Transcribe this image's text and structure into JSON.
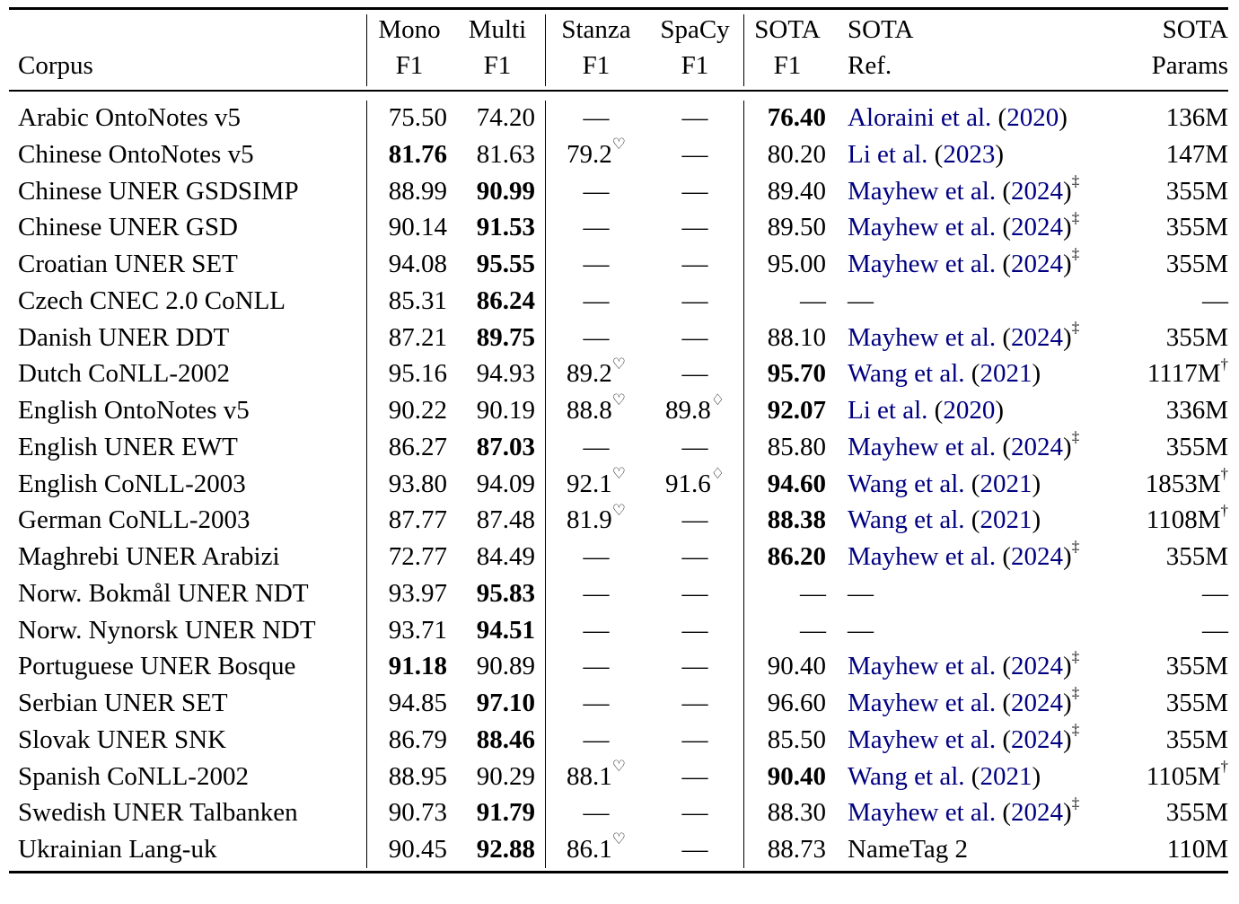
{
  "table": {
    "headers": {
      "row1": [
        "",
        "Mono",
        "Multi",
        "Stanza",
        "SpaCy",
        "SOTA",
        "SOTA",
        "SOTA"
      ],
      "row2": [
        "Corpus",
        "F1",
        "F1",
        "F1",
        "F1",
        "F1",
        "Ref.",
        "Params"
      ]
    },
    "rows": [
      {
        "corpus": "Arabic OntoNotes v5",
        "mono": "75.50",
        "multi": "74.20",
        "stanza": "—",
        "stanza_mark": "",
        "spacy": "—",
        "spacy_mark": "",
        "sota": "76.40",
        "ref": "Aloraini et al. (2020)",
        "ref_mark": "",
        "params": "136M",
        "params_mark": "",
        "bold": "sota"
      },
      {
        "corpus": "Chinese OntoNotes v5",
        "mono": "81.76",
        "multi": "81.63",
        "stanza": "79.2",
        "stanza_mark": "♡",
        "spacy": "—",
        "spacy_mark": "",
        "sota": "80.20",
        "ref": "Li et al. (2023)",
        "ref_mark": "",
        "params": "147M",
        "params_mark": "",
        "bold": "mono"
      },
      {
        "corpus": "Chinese UNER GSDSIMP",
        "mono": "88.99",
        "multi": "90.99",
        "stanza": "—",
        "stanza_mark": "",
        "spacy": "—",
        "spacy_mark": "",
        "sota": "89.40",
        "ref": "Mayhew et al. (2024)",
        "ref_mark": "‡",
        "params": "355M",
        "params_mark": "",
        "bold": "multi"
      },
      {
        "corpus": "Chinese UNER GSD",
        "mono": "90.14",
        "multi": "91.53",
        "stanza": "—",
        "stanza_mark": "",
        "spacy": "—",
        "spacy_mark": "",
        "sota": "89.50",
        "ref": "Mayhew et al. (2024)",
        "ref_mark": "‡",
        "params": "355M",
        "params_mark": "",
        "bold": "multi"
      },
      {
        "corpus": "Croatian UNER SET",
        "mono": "94.08",
        "multi": "95.55",
        "stanza": "—",
        "stanza_mark": "",
        "spacy": "—",
        "spacy_mark": "",
        "sota": "95.00",
        "ref": "Mayhew et al. (2024)",
        "ref_mark": "‡",
        "params": "355M",
        "params_mark": "",
        "bold": "multi"
      },
      {
        "corpus": "Czech CNEC 2.0 CoNLL",
        "mono": "85.31",
        "multi": "86.24",
        "stanza": "—",
        "stanza_mark": "",
        "spacy": "—",
        "spacy_mark": "",
        "sota": "—",
        "ref": "—",
        "ref_mark": "",
        "params": "—",
        "params_mark": "",
        "bold": "multi"
      },
      {
        "corpus": "Danish UNER DDT",
        "mono": "87.21",
        "multi": "89.75",
        "stanza": "—",
        "stanza_mark": "",
        "spacy": "—",
        "spacy_mark": "",
        "sota": "88.10",
        "ref": "Mayhew et al. (2024)",
        "ref_mark": "‡",
        "params": "355M",
        "params_mark": "",
        "bold": "multi"
      },
      {
        "corpus": "Dutch CoNLL-2002",
        "mono": "95.16",
        "multi": "94.93",
        "stanza": "89.2",
        "stanza_mark": "♡",
        "spacy": "—",
        "spacy_mark": "",
        "sota": "95.70",
        "ref": "Wang et al. (2021)",
        "ref_mark": "",
        "params": "1117M",
        "params_mark": "†",
        "bold": "sota"
      },
      {
        "corpus": "English OntoNotes v5",
        "mono": "90.22",
        "multi": "90.19",
        "stanza": "88.8",
        "stanza_mark": "♡",
        "spacy": "89.8",
        "spacy_mark": "♢",
        "sota": "92.07",
        "ref": "Li et al. (2020)",
        "ref_mark": "",
        "params": "336M",
        "params_mark": "",
        "bold": "sota"
      },
      {
        "corpus": "English UNER EWT",
        "mono": "86.27",
        "multi": "87.03",
        "stanza": "—",
        "stanza_mark": "",
        "spacy": "—",
        "spacy_mark": "",
        "sota": "85.80",
        "ref": "Mayhew et al. (2024)",
        "ref_mark": "‡",
        "params": "355M",
        "params_mark": "",
        "bold": "multi"
      },
      {
        "corpus": "English CoNLL-2003",
        "mono": "93.80",
        "multi": "94.09",
        "stanza": "92.1",
        "stanza_mark": "♡",
        "spacy": "91.6",
        "spacy_mark": "♢",
        "sota": "94.60",
        "ref": "Wang et al. (2021)",
        "ref_mark": "",
        "params": "1853M",
        "params_mark": "†",
        "bold": "sota"
      },
      {
        "corpus": "German CoNLL-2003",
        "mono": "87.77",
        "multi": "87.48",
        "stanza": "81.9",
        "stanza_mark": "♡",
        "spacy": "—",
        "spacy_mark": "",
        "sota": "88.38",
        "ref": "Wang et al. (2021)",
        "ref_mark": "",
        "params": "1108M",
        "params_mark": "†",
        "bold": "sota"
      },
      {
        "corpus": "Maghrebi UNER Arabizi",
        "mono": "72.77",
        "multi": "84.49",
        "stanza": "—",
        "stanza_mark": "",
        "spacy": "—",
        "spacy_mark": "",
        "sota": "86.20",
        "ref": "Mayhew et al. (2024)",
        "ref_mark": "‡",
        "params": "355M",
        "params_mark": "",
        "bold": "sota"
      },
      {
        "corpus": "Norw. Bokmål UNER NDT",
        "mono": "93.97",
        "multi": "95.83",
        "stanza": "—",
        "stanza_mark": "",
        "spacy": "—",
        "spacy_mark": "",
        "sota": "—",
        "ref": "—",
        "ref_mark": "",
        "params": "—",
        "params_mark": "",
        "bold": "multi"
      },
      {
        "corpus": "Norw. Nynorsk UNER NDT",
        "mono": "93.71",
        "multi": "94.51",
        "stanza": "—",
        "stanza_mark": "",
        "spacy": "—",
        "spacy_mark": "",
        "sota": "—",
        "ref": "—",
        "ref_mark": "",
        "params": "—",
        "params_mark": "",
        "bold": "multi"
      },
      {
        "corpus": "Portuguese UNER Bosque",
        "mono": "91.18",
        "multi": "90.89",
        "stanza": "—",
        "stanza_mark": "",
        "spacy": "—",
        "spacy_mark": "",
        "sota": "90.40",
        "ref": "Mayhew et al. (2024)",
        "ref_mark": "‡",
        "params": "355M",
        "params_mark": "",
        "bold": "mono"
      },
      {
        "corpus": "Serbian UNER SET",
        "mono": "94.85",
        "multi": "97.10",
        "stanza": "—",
        "stanza_mark": "",
        "spacy": "—",
        "spacy_mark": "",
        "sota": "96.60",
        "ref": "Mayhew et al. (2024)",
        "ref_mark": "‡",
        "params": "355M",
        "params_mark": "",
        "bold": "multi"
      },
      {
        "corpus": "Slovak UNER SNK",
        "mono": "86.79",
        "multi": "88.46",
        "stanza": "—",
        "stanza_mark": "",
        "spacy": "—",
        "spacy_mark": "",
        "sota": "85.50",
        "ref": "Mayhew et al. (2024)",
        "ref_mark": "‡",
        "params": "355M",
        "params_mark": "",
        "bold": "multi"
      },
      {
        "corpus": "Spanish CoNLL-2002",
        "mono": "88.95",
        "multi": "90.29",
        "stanza": "88.1",
        "stanza_mark": "♡",
        "spacy": "—",
        "spacy_mark": "",
        "sota": "90.40",
        "ref": "Wang et al. (2021)",
        "ref_mark": "",
        "params": "1105M",
        "params_mark": "†",
        "bold": "sota"
      },
      {
        "corpus": "Swedish UNER Talbanken",
        "mono": "90.73",
        "multi": "91.79",
        "stanza": "—",
        "stanza_mark": "",
        "spacy": "—",
        "spacy_mark": "",
        "sota": "88.30",
        "ref": "Mayhew et al. (2024)",
        "ref_mark": "‡",
        "params": "355M",
        "params_mark": "",
        "bold": "multi"
      },
      {
        "corpus": "Ukrainian Lang-uk",
        "mono": "90.45",
        "multi": "92.88",
        "stanza": "86.1",
        "stanza_mark": "♡",
        "spacy": "—",
        "spacy_mark": "",
        "sota": "88.73",
        "ref": "NameTag 2",
        "ref_mark": "",
        "params": "110M",
        "params_mark": "",
        "bold": "multi"
      }
    ]
  },
  "colors": {
    "citation": "#000080",
    "text": "#000000",
    "background": "#ffffff"
  }
}
